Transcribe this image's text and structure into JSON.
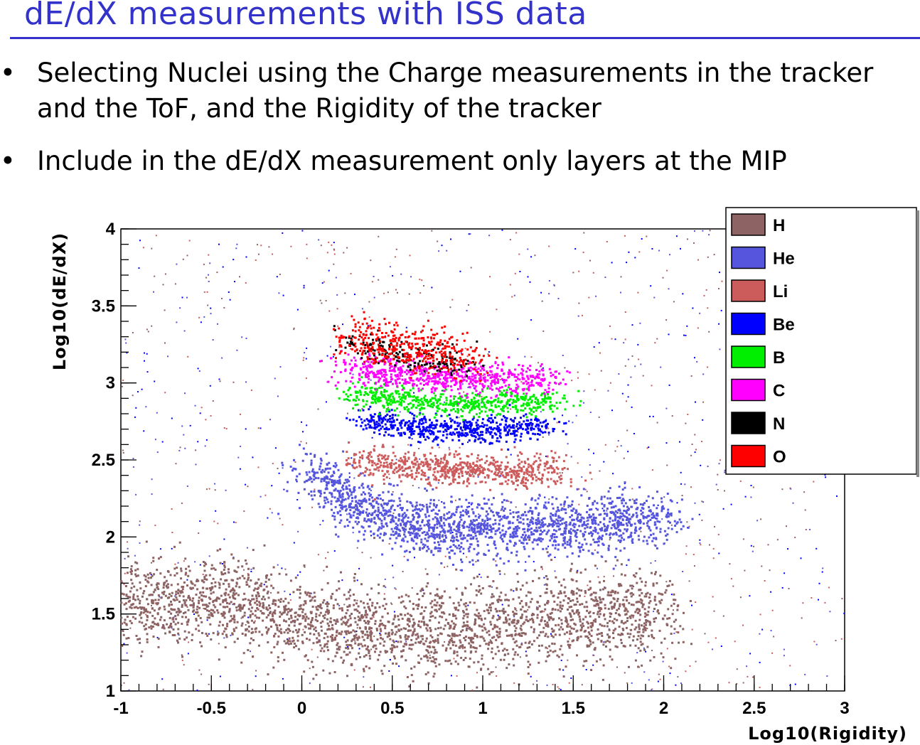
{
  "slide": {
    "title": "dE/dX  measurements with ISS data",
    "bullets": [
      "Selecting Nuclei using the Charge measurements in the tracker and the ToF, and the Rigidity of the tracker",
      "Include in the dE/dX measurement only layers at the MIP"
    ]
  },
  "chart_data": {
    "type": "scatter",
    "title": "",
    "xlabel": "Log10(Rigidity)",
    "ylabel": "Log10(dE/dX)",
    "xlim": [
      -1,
      3
    ],
    "ylim": [
      1,
      4
    ],
    "xticks": [
      "-1",
      "-0.5",
      "0",
      "0.5",
      "1",
      "1.5",
      "2",
      "2.5",
      "3"
    ],
    "yticks": [
      "1",
      "1.5",
      "2",
      "2.5",
      "3",
      "3.5",
      "4"
    ],
    "legend_position": "top-right",
    "series": [
      {
        "name": "H",
        "color": "#8e6363",
        "band": [
          [
            -1,
            1.55
          ],
          [
            -0.4,
            1.6
          ],
          [
            0,
            1.45
          ],
          [
            0.5,
            1.38
          ],
          [
            1,
            1.42
          ],
          [
            1.5,
            1.47
          ],
          [
            2,
            1.5
          ]
        ],
        "spread": 0.14
      },
      {
        "name": "He",
        "color": "#5555dd",
        "band": [
          [
            0.05,
            2.4
          ],
          [
            0.3,
            2.2
          ],
          [
            0.6,
            2.07
          ],
          [
            1,
            2.05
          ],
          [
            1.5,
            2.08
          ],
          [
            2,
            2.12
          ]
        ],
        "spread": 0.09
      },
      {
        "name": "Li",
        "color": "#cc5c5c",
        "band": [
          [
            0.35,
            2.49
          ],
          [
            0.7,
            2.45
          ],
          [
            1,
            2.43
          ],
          [
            1.4,
            2.42
          ]
        ],
        "spread": 0.05
      },
      {
        "name": "Be",
        "color": "#0000ff",
        "band": [
          [
            0.35,
            2.75
          ],
          [
            0.7,
            2.7
          ],
          [
            1.1,
            2.7
          ],
          [
            1.35,
            2.72
          ]
        ],
        "spread": 0.04
      },
      {
        "name": "B",
        "color": "#00ee00",
        "band": [
          [
            0.3,
            2.92
          ],
          [
            0.7,
            2.87
          ],
          [
            1.1,
            2.87
          ],
          [
            1.4,
            2.88
          ]
        ],
        "spread": 0.04
      },
      {
        "name": "C",
        "color": "#ff00ff",
        "band": [
          [
            0.25,
            3.1
          ],
          [
            0.6,
            3.05
          ],
          [
            1.0,
            3.02
          ],
          [
            1.35,
            3.02
          ]
        ],
        "spread": 0.05
      },
      {
        "name": "N",
        "color": "#000000",
        "band": [
          [
            0.25,
            3.26
          ],
          [
            0.6,
            3.17
          ],
          [
            0.9,
            3.12
          ]
        ],
        "spread": 0.05
      },
      {
        "name": "O",
        "color": "#ff0000",
        "band": [
          [
            0.25,
            3.3
          ],
          [
            0.6,
            3.22
          ],
          [
            0.95,
            3.15
          ]
        ],
        "spread": 0.07
      }
    ],
    "background_color": "#9a7a7a",
    "background_colors": [
      "#8e6363",
      "#5555dd",
      "#cc5c5c",
      "#0000ff"
    ]
  }
}
